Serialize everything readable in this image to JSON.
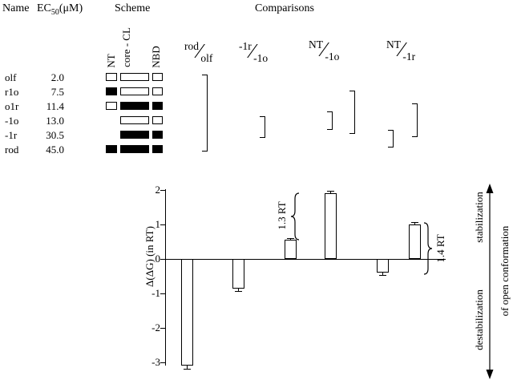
{
  "headers": {
    "name": "Name",
    "ec50_pre": "EC",
    "ec50_sub": "50",
    "ec50_suf": "(μM)",
    "scheme": "Scheme",
    "comparisons": "Comparisons"
  },
  "scheme_domains": {
    "nt": "NT",
    "core": "core - CL",
    "nbd": "NBD"
  },
  "glyphs": {
    "fraction_slash": "∕"
  },
  "table": {
    "rows": [
      {
        "name": "olf",
        "ec50": "2.0",
        "scheme": {
          "nt": "open",
          "core": "open",
          "nbd": "open"
        }
      },
      {
        "name": "r1o",
        "ec50": "7.5",
        "scheme": {
          "nt": "filled",
          "core": "open",
          "nbd": "open"
        }
      },
      {
        "name": "o1r",
        "ec50": "11.4",
        "scheme": {
          "nt": "open",
          "core": "filled",
          "nbd": "filled"
        }
      },
      {
        "name": "-1o",
        "ec50": "13.0",
        "scheme": {
          "nt": "none",
          "core": "open",
          "nbd": "open"
        }
      },
      {
        "name": "-1r",
        "ec50": "30.5",
        "scheme": {
          "nt": "none",
          "core": "filled",
          "nbd": "filled"
        }
      },
      {
        "name": "rod",
        "ec50": "45.0",
        "scheme": {
          "nt": "filled",
          "core": "filled",
          "nbd": "filled"
        }
      }
    ]
  },
  "comparisons": [
    {
      "num": "rod",
      "den": "olf"
    },
    {
      "num": "-1r",
      "den": "-1o"
    },
    {
      "num": "NT",
      "den": "-1o"
    },
    {
      "num": "NT",
      "den": "-1r"
    }
  ],
  "chart_data": {
    "type": "bar",
    "ylabel": "Δ(ΔG) (in RT)",
    "yticks": [
      2,
      1,
      0,
      -1,
      -2,
      -3
    ],
    "ylim": [
      -3.3,
      2
    ],
    "baseline": 0,
    "grid": false,
    "groups": [
      {
        "comparison": "rod/olf",
        "bars": [
          {
            "value": -3.1,
            "error": 0.08
          }
        ]
      },
      {
        "comparison": "-1r/-1o",
        "bars": [
          {
            "value": -0.85,
            "error": 0.07
          }
        ]
      },
      {
        "comparison": "NT/-1o",
        "bars": [
          {
            "value": 0.55,
            "error": 0.05
          },
          {
            "value": 1.9,
            "error": 0.07
          }
        ],
        "difference_label": "1.3 RT"
      },
      {
        "comparison": "NT/-1r",
        "bars": [
          {
            "value": -0.4,
            "error": 0.06
          },
          {
            "value": 1.0,
            "error": 0.08
          }
        ],
        "difference_label": "1.4 RT"
      }
    ],
    "annotations": {
      "up": "stabilization",
      "down": "destabilization",
      "axis_phrase": "of open conformation"
    }
  }
}
